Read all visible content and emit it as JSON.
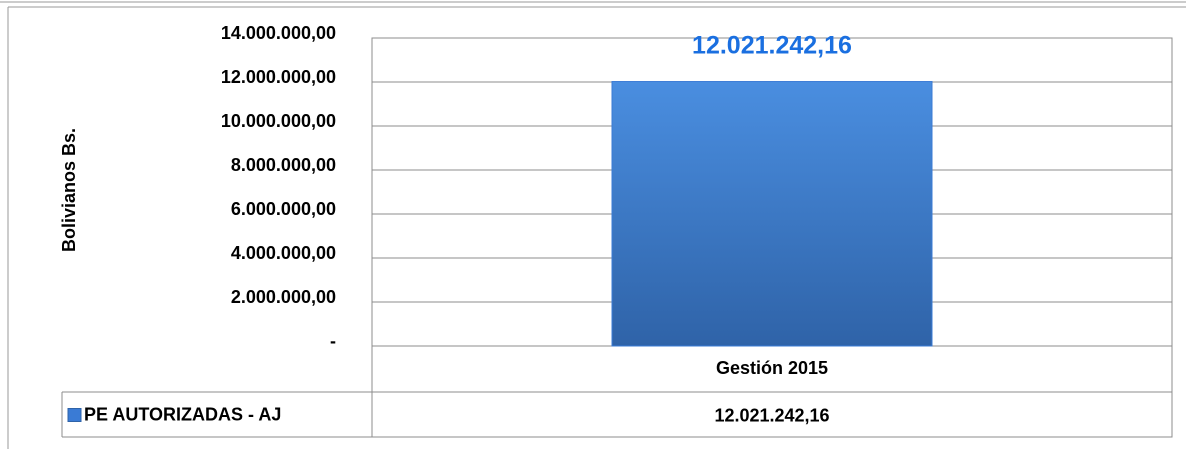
{
  "chart_data": {
    "type": "bar",
    "y_label": "Bolivianos  Bs.",
    "categories": [
      "Gestión 2015"
    ],
    "series": [
      {
        "name": "PE AUTORIZADAS - AJ",
        "color": "#3a7bd5",
        "values": [
          12021242.16
        ],
        "value_labels": [
          "12.021.242,16"
        ]
      }
    ],
    "ylim": [
      0,
      14000000
    ],
    "yticks": [
      {
        "value": 0,
        "label": "-"
      },
      {
        "value": 2000000,
        "label": "2.000.000,00"
      },
      {
        "value": 4000000,
        "label": "4.000.000,00"
      },
      {
        "value": 6000000,
        "label": "6.000.000,00"
      },
      {
        "value": 8000000,
        "label": "8.000.000,00"
      },
      {
        "value": 10000000,
        "label": "10.000.000,00"
      },
      {
        "value": 12000000,
        "label": "12.000.000,00"
      },
      {
        "value": 14000000,
        "label": "14.000.000,00"
      }
    ],
    "grid": true,
    "data_table": true
  }
}
